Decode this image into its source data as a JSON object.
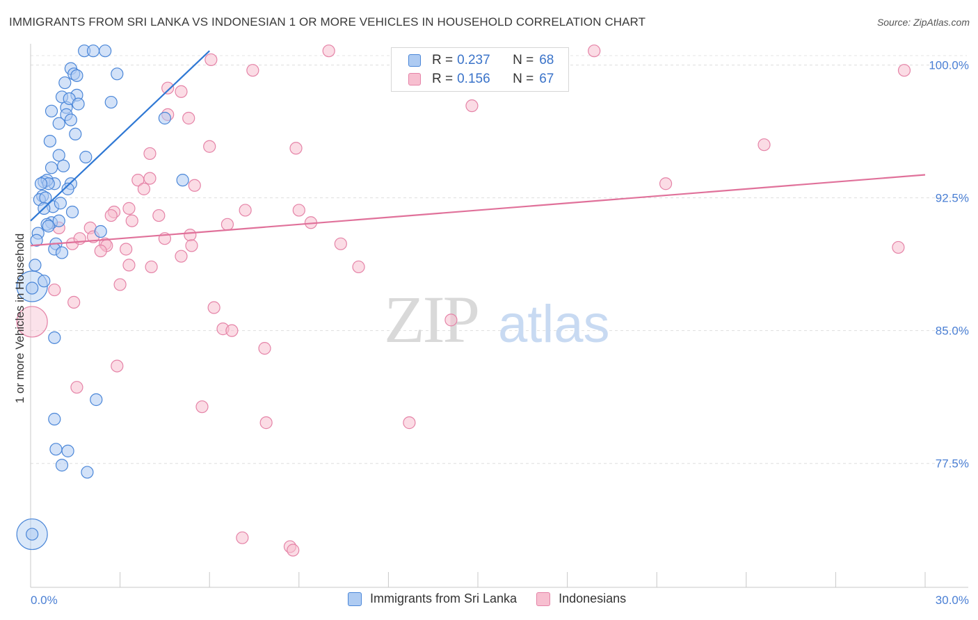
{
  "title": "IMMIGRANTS FROM SRI LANKA VS INDONESIAN 1 OR MORE VEHICLES IN HOUSEHOLD CORRELATION CHART",
  "source": "Source: ZipAtlas.com",
  "watermark": {
    "zip": "ZIP",
    "atlas": "atlas"
  },
  "legend": {
    "rows": [
      {
        "r_label": "R =",
        "r_value": "0.237",
        "n_label": "N =",
        "n_value": "68"
      },
      {
        "r_label": "R =",
        "r_value": "0.156",
        "n_label": "N =",
        "n_value": "67"
      }
    ]
  },
  "colors": {
    "blue_fill": "#aecbf2",
    "blue_stroke": "#4a86d8",
    "blue_line": "#2f78d4",
    "pink_fill": "#f7bfd0",
    "pink_stroke": "#e583a7",
    "pink_line": "#e0719a",
    "tick_label": "#4a7fd4"
  },
  "chart_data": {
    "type": "scatter",
    "title": "IMMIGRANTS FROM SRI LANKA VS INDONESIAN 1 OR MORE VEHICLES IN HOUSEHOLD CORRELATION CHART",
    "xlabel": "",
    "ylabel": "1 or more Vehicles in Household",
    "xlim": [
      0,
      30
    ],
    "ylim": [
      70.5,
      101.2
    ],
    "x_tick_labels": [
      {
        "value": 0,
        "label": "0.0%"
      },
      {
        "value": 30,
        "label": "30.0%"
      }
    ],
    "y_ticks": [
      {
        "value": 100,
        "label": "100.0%"
      },
      {
        "value": 92.5,
        "label": "92.5%"
      },
      {
        "value": 85,
        "label": "85.0%"
      },
      {
        "value": 77.5,
        "label": "77.5%"
      }
    ],
    "x_minor_ticks": [
      0,
      3,
      6,
      9,
      12,
      15,
      18,
      21,
      24,
      27,
      30
    ],
    "series": [
      {
        "name": "Immigrants from Sri Lanka",
        "color": "blue",
        "trend": {
          "x": [
            0.0,
            6.0
          ],
          "y": [
            91.2,
            100.8
          ]
        },
        "points": [
          [
            1.8,
            100.8
          ],
          [
            2.1,
            100.8
          ],
          [
            2.5,
            100.8
          ],
          [
            1.35,
            99.8
          ],
          [
            1.45,
            99.5
          ],
          [
            1.55,
            99.4
          ],
          [
            1.15,
            99.0
          ],
          [
            2.9,
            99.5
          ],
          [
            1.05,
            98.2
          ],
          [
            1.55,
            98.3
          ],
          [
            1.2,
            97.6
          ],
          [
            1.3,
            98.1
          ],
          [
            1.6,
            97.8
          ],
          [
            2.7,
            97.9
          ],
          [
            0.7,
            97.4
          ],
          [
            1.2,
            97.2
          ],
          [
            1.35,
            96.9
          ],
          [
            4.5,
            97.0
          ],
          [
            0.95,
            96.7
          ],
          [
            1.5,
            96.1
          ],
          [
            0.65,
            95.7
          ],
          [
            0.95,
            94.9
          ],
          [
            1.85,
            94.8
          ],
          [
            0.7,
            94.2
          ],
          [
            1.1,
            94.3
          ],
          [
            0.8,
            93.3
          ],
          [
            1.35,
            93.3
          ],
          [
            0.45,
            93.4
          ],
          [
            0.55,
            93.5
          ],
          [
            5.1,
            93.5
          ],
          [
            0.6,
            93.3
          ],
          [
            0.35,
            93.3
          ],
          [
            1.25,
            93.0
          ],
          [
            0.4,
            92.6
          ],
          [
            0.3,
            92.4
          ],
          [
            0.5,
            92.5
          ],
          [
            0.75,
            92.0
          ],
          [
            1.0,
            92.2
          ],
          [
            0.7,
            91.1
          ],
          [
            0.45,
            91.9
          ],
          [
            1.4,
            91.7
          ],
          [
            0.95,
            91.2
          ],
          [
            0.55,
            91.0
          ],
          [
            0.6,
            90.9
          ],
          [
            0.25,
            90.5
          ],
          [
            0.2,
            90.1
          ],
          [
            0.85,
            89.9
          ],
          [
            2.35,
            90.6
          ],
          [
            0.8,
            89.6
          ],
          [
            1.05,
            89.4
          ],
          [
            0.15,
            88.7
          ],
          [
            0.45,
            87.8
          ],
          [
            0.05,
            87.4
          ],
          [
            0.8,
            84.6
          ],
          [
            2.2,
            81.1
          ],
          [
            0.8,
            80.0
          ],
          [
            0.85,
            78.3
          ],
          [
            1.25,
            78.2
          ],
          [
            1.05,
            77.4
          ],
          [
            1.9,
            77.0
          ],
          [
            0.05,
            73.5
          ]
        ],
        "large_points": [
          [
            0.05,
            87.5
          ],
          [
            0.05,
            73.5
          ]
        ]
      },
      {
        "name": "Indonesians",
        "color": "pink",
        "trend": {
          "x": [
            0.0,
            30.0
          ],
          "y": [
            89.8,
            93.8
          ]
        },
        "points": [
          [
            10.0,
            100.8
          ],
          [
            18.9,
            100.8
          ],
          [
            6.05,
            100.3
          ],
          [
            7.45,
            99.7
          ],
          [
            29.3,
            99.7
          ],
          [
            4.6,
            98.7
          ],
          [
            5.05,
            98.5
          ],
          [
            14.8,
            97.7
          ],
          [
            4.6,
            97.2
          ],
          [
            5.3,
            97.0
          ],
          [
            8.9,
            95.3
          ],
          [
            6.0,
            95.4
          ],
          [
            4.0,
            95.0
          ],
          [
            24.6,
            95.5
          ],
          [
            3.6,
            93.5
          ],
          [
            4.0,
            93.6
          ],
          [
            5.5,
            93.2
          ],
          [
            21.3,
            93.3
          ],
          [
            3.8,
            93.0
          ],
          [
            2.8,
            91.7
          ],
          [
            9.0,
            91.8
          ],
          [
            3.3,
            91.9
          ],
          [
            2.7,
            91.5
          ],
          [
            7.2,
            91.8
          ],
          [
            4.3,
            91.5
          ],
          [
            3.4,
            91.2
          ],
          [
            6.6,
            91.0
          ],
          [
            9.4,
            91.1
          ],
          [
            2.0,
            90.8
          ],
          [
            0.95,
            90.8
          ],
          [
            2.1,
            90.3
          ],
          [
            1.4,
            89.9
          ],
          [
            2.5,
            89.9
          ],
          [
            1.65,
            90.2
          ],
          [
            2.55,
            89.8
          ],
          [
            5.35,
            90.4
          ],
          [
            4.5,
            90.2
          ],
          [
            5.4,
            89.8
          ],
          [
            3.2,
            89.6
          ],
          [
            10.4,
            89.9
          ],
          [
            29.1,
            89.7
          ],
          [
            2.35,
            89.5
          ],
          [
            5.05,
            89.2
          ],
          [
            3.3,
            88.7
          ],
          [
            4.05,
            88.6
          ],
          [
            11.0,
            88.6
          ],
          [
            3.0,
            87.6
          ],
          [
            0.8,
            87.3
          ],
          [
            1.45,
            86.6
          ],
          [
            6.15,
            86.3
          ],
          [
            14.1,
            85.6
          ],
          [
            6.45,
            85.1
          ],
          [
            6.75,
            85.0
          ],
          [
            7.85,
            84.0
          ],
          [
            2.9,
            83.0
          ],
          [
            1.55,
            81.8
          ],
          [
            5.75,
            80.7
          ],
          [
            7.9,
            79.8
          ],
          [
            12.7,
            79.8
          ],
          [
            7.1,
            73.3
          ],
          [
            8.7,
            72.8
          ],
          [
            8.8,
            72.6
          ]
        ],
        "large_points": [
          [
            0.05,
            85.5
          ]
        ]
      }
    ],
    "legend_entries": [
      "Immigrants from Sri Lanka",
      "Indonesians"
    ]
  }
}
